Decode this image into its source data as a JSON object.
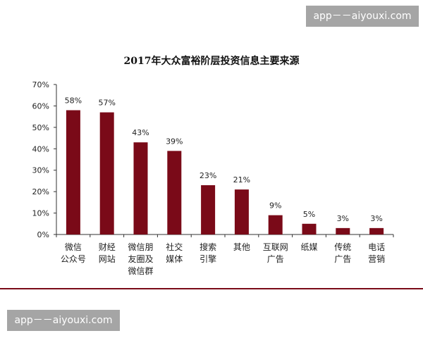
{
  "watermark": {
    "top_text": "app－－aiyouxi.com",
    "bottom_text": "app－－aiyouxi.com"
  },
  "colors": {
    "bar": "#7a0a18",
    "axis": "#333333",
    "rule": "#7a0a18"
  },
  "chart_data": {
    "type": "bar",
    "title": "2017年大众富裕阶层投资信息主要来源",
    "xlabel": "",
    "ylabel": "",
    "ylim": [
      0,
      70
    ],
    "yticks": [
      "0%",
      "10%",
      "20%",
      "30%",
      "40%",
      "50%",
      "60%",
      "70%"
    ],
    "ytick_values": [
      0,
      10,
      20,
      30,
      40,
      50,
      60,
      70
    ],
    "grid": false,
    "legend": "none",
    "categories": [
      [
        "微信",
        "公众号"
      ],
      [
        "财经",
        "网站"
      ],
      [
        "微信朋",
        "友圈及",
        "微信群"
      ],
      [
        "社交",
        "媒体"
      ],
      [
        "搜索",
        "引擎"
      ],
      [
        "其他"
      ],
      [
        "互联网",
        "广告"
      ],
      [
        "纸媒"
      ],
      [
        "传统",
        "广告"
      ],
      [
        "电话",
        "营销"
      ]
    ],
    "values": [
      58,
      57,
      43,
      39,
      23,
      21,
      9,
      5,
      3,
      3
    ],
    "data_labels": [
      "58%",
      "57%",
      "43%",
      "39%",
      "23%",
      "21%",
      "9%",
      "5%",
      "3%",
      "3%"
    ]
  }
}
